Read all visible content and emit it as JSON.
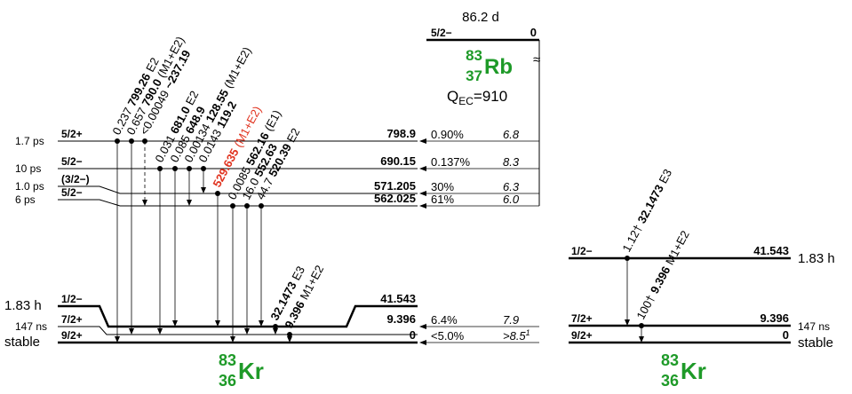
{
  "parent": {
    "half_life": "86.2 d",
    "spin": "5/2−",
    "energy": "0",
    "mass": "83",
    "z": "37",
    "symbol": "Rb",
    "q_label": "Q",
    "q_sub": "EC",
    "q_value": "=910",
    "break_mark": "≈"
  },
  "daughter": {
    "mass": "83",
    "z": "36",
    "symbol": "Kr"
  },
  "levels": [
    {
      "half_life": "1.7 ps",
      "spin": "5/2+",
      "energy": "798.9",
      "feeding": "0.90%",
      "logft": "6.8"
    },
    {
      "half_life": "10 ps",
      "spin": "5/2−",
      "energy": "690.15",
      "feeding": "0.137%",
      "logft": "8.3"
    },
    {
      "half_life": "1.0 ps",
      "spin": "(3/2−)",
      "energy": "571.205",
      "feeding": "30%",
      "logft": "6.3"
    },
    {
      "half_life": "6 ps",
      "spin": "5/2−",
      "energy": "562.025",
      "feeding": "61%",
      "logft": "6.0"
    },
    {
      "half_life": "1.83 h",
      "spin": "1/2−",
      "energy": "41.543"
    },
    {
      "half_life": "147 ns",
      "spin": "7/2+",
      "energy": "9.396",
      "feeding": "6.4%",
      "logft": "7.9"
    },
    {
      "half_life": "stable",
      "spin": "9/2+",
      "energy": "0",
      "feeding": "<5.0%",
      "logft": ">8.5",
      "footnote": "1"
    }
  ],
  "gammas": [
    {
      "intensity": "0.237",
      "energy": "799.26",
      "multipolarity": "E2"
    },
    {
      "intensity": "0.657",
      "energy": "790.0",
      "multipolarity": "(M1+E2)"
    },
    {
      "intensity": "<0.00049",
      "energy": "~237.19"
    },
    {
      "intensity": "0.031",
      "energy": "681.0",
      "multipolarity": "E2"
    },
    {
      "intensity": "0.085",
      "energy": "648.9"
    },
    {
      "intensity": "0.00134",
      "energy": "128.55",
      "multipolarity": "(M1+E2)"
    },
    {
      "intensity": "0.0143",
      "energy": "119.2"
    },
    {
      "energy": "529.635",
      "multipolarity": "(M1+E2)"
    },
    {
      "intensity": "0.0085",
      "energy": "562.16",
      "multipolarity": "(E1)"
    },
    {
      "intensity": "16.0",
      "energy": "552.63"
    },
    {
      "intensity": "44.7",
      "energy": "520.39",
      "multipolarity": "E2"
    },
    {
      "energy": "32.1473",
      "multipolarity": "E3"
    },
    {
      "energy": "9.396",
      "multipolarity": "M1+E2"
    }
  ],
  "isomer_panel": {
    "levels": [
      {
        "half_life": "1.83 h",
        "spin": "1/2−",
        "energy": "41.543"
      },
      {
        "half_life": "147 ns",
        "spin": "7/2+",
        "energy": "9.396"
      },
      {
        "half_life": "stable",
        "spin": "9/2+",
        "energy": "0"
      }
    ],
    "gammas": [
      {
        "intensity": "1.12†",
        "energy": "32.1473",
        "multipolarity": "E3"
      },
      {
        "intensity": "100†",
        "energy": "9.396",
        "multipolarity": "M1+E2"
      }
    ],
    "daughter": {
      "mass": "83",
      "z": "36",
      "symbol": "Kr"
    }
  }
}
